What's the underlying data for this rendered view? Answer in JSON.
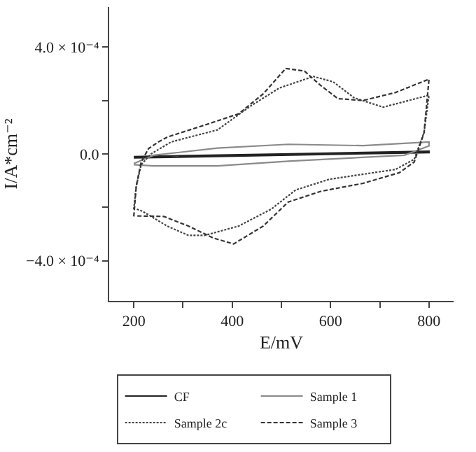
{
  "chart_data": {
    "type": "line",
    "xlabel": "E/mV",
    "ylabel": "I/A*cm⁻²",
    "xlim": [
      150,
      850
    ],
    "ylim": [
      -0.00055,
      0.00055
    ],
    "xticks": [
      200,
      {
        "value": 300,
        "label": null
      },
      400,
      {
        "value": 500,
        "label": null
      },
      600,
      {
        "value": 700,
        "label": null
      },
      800
    ],
    "yticks": [
      {
        "value": -0.0004,
        "label": "−4.0 × 10⁻⁴"
      },
      {
        "value": -0.0002,
        "label": null
      },
      {
        "value": 0,
        "label": "0.0"
      },
      {
        "value": 0.0002,
        "label": null
      },
      {
        "value": 0.0004,
        "label": "4.0 × 10⁻⁴"
      }
    ],
    "legend": "bottom",
    "marker": "none",
    "series": [
      {
        "name": "CF",
        "color": "#222222",
        "line_style": "solid",
        "x": [
          200,
          500,
          800,
          800,
          500,
          200
        ],
        "values": [
          -1e-05,
          0.0,
          1e-05,
          5e-06,
          -5e-06,
          -1.5e-05
        ]
      },
      {
        "name": "Sample 1",
        "color": "#8a8a8a",
        "line_style": "solid",
        "x": [
          200,
          240,
          370,
          514,
          666,
          800,
          800,
          750,
          514,
          370,
          240,
          200
        ],
        "values": [
          -3.6e-05,
          -5e-06,
          2.2e-05,
          3.6e-05,
          3.1e-05,
          4.5e-05,
          3e-05,
          -5e-06,
          -2.7e-05,
          -4.5e-05,
          -4.5e-05,
          -4e-05
        ]
      },
      {
        "name": "Sample 2c",
        "color": "#444444",
        "line_style": "dotted",
        "x": [
          200,
          205,
          215,
          235,
          276,
          370,
          438,
          496,
          565,
          605,
          648,
          707,
          800,
          790,
          770,
          732,
          597,
          529,
          479,
          413,
          344,
          311,
          268,
          218,
          204
        ],
        "values": [
          -0.000207,
          -0.00012,
          -4e-05,
          0.0,
          4.5e-05,
          9e-05,
          0.00018,
          0.000247,
          0.00029,
          0.00027,
          0.00021,
          0.000175,
          0.00022,
          8e-05,
          -2e-05,
          -5.8e-05,
          -9.5e-05,
          -0.000135,
          -0.000207,
          -0.00027,
          -0.000305,
          -0.000305,
          -0.00027,
          -0.000215,
          -0.000205
        ]
      },
      {
        "name": "Sample 3",
        "color": "#333333",
        "line_style": "dashed",
        "x": [
          200,
          205,
          215,
          230,
          250,
          268,
          344,
          413,
          463,
          509,
          547,
          580,
          615,
          666,
          732,
          800,
          790,
          770,
          740,
          666,
          580,
          514,
          463,
          403,
          362,
          311,
          261,
          204
        ],
        "values": [
          -0.000234,
          -0.00012,
          -3e-05,
          2e-05,
          4.5e-05,
          6.3e-05,
          0.000108,
          0.00015,
          0.000225,
          0.00032,
          0.00031,
          0.000256,
          0.000207,
          0.0002,
          0.00023,
          0.00028,
          8e-05,
          -3e-05,
          -7e-05,
          -0.00011,
          -0.00014,
          -0.00018,
          -0.00027,
          -0.000337,
          -0.000315,
          -0.00027,
          -0.000234,
          -0.000232
        ]
      }
    ]
  }
}
